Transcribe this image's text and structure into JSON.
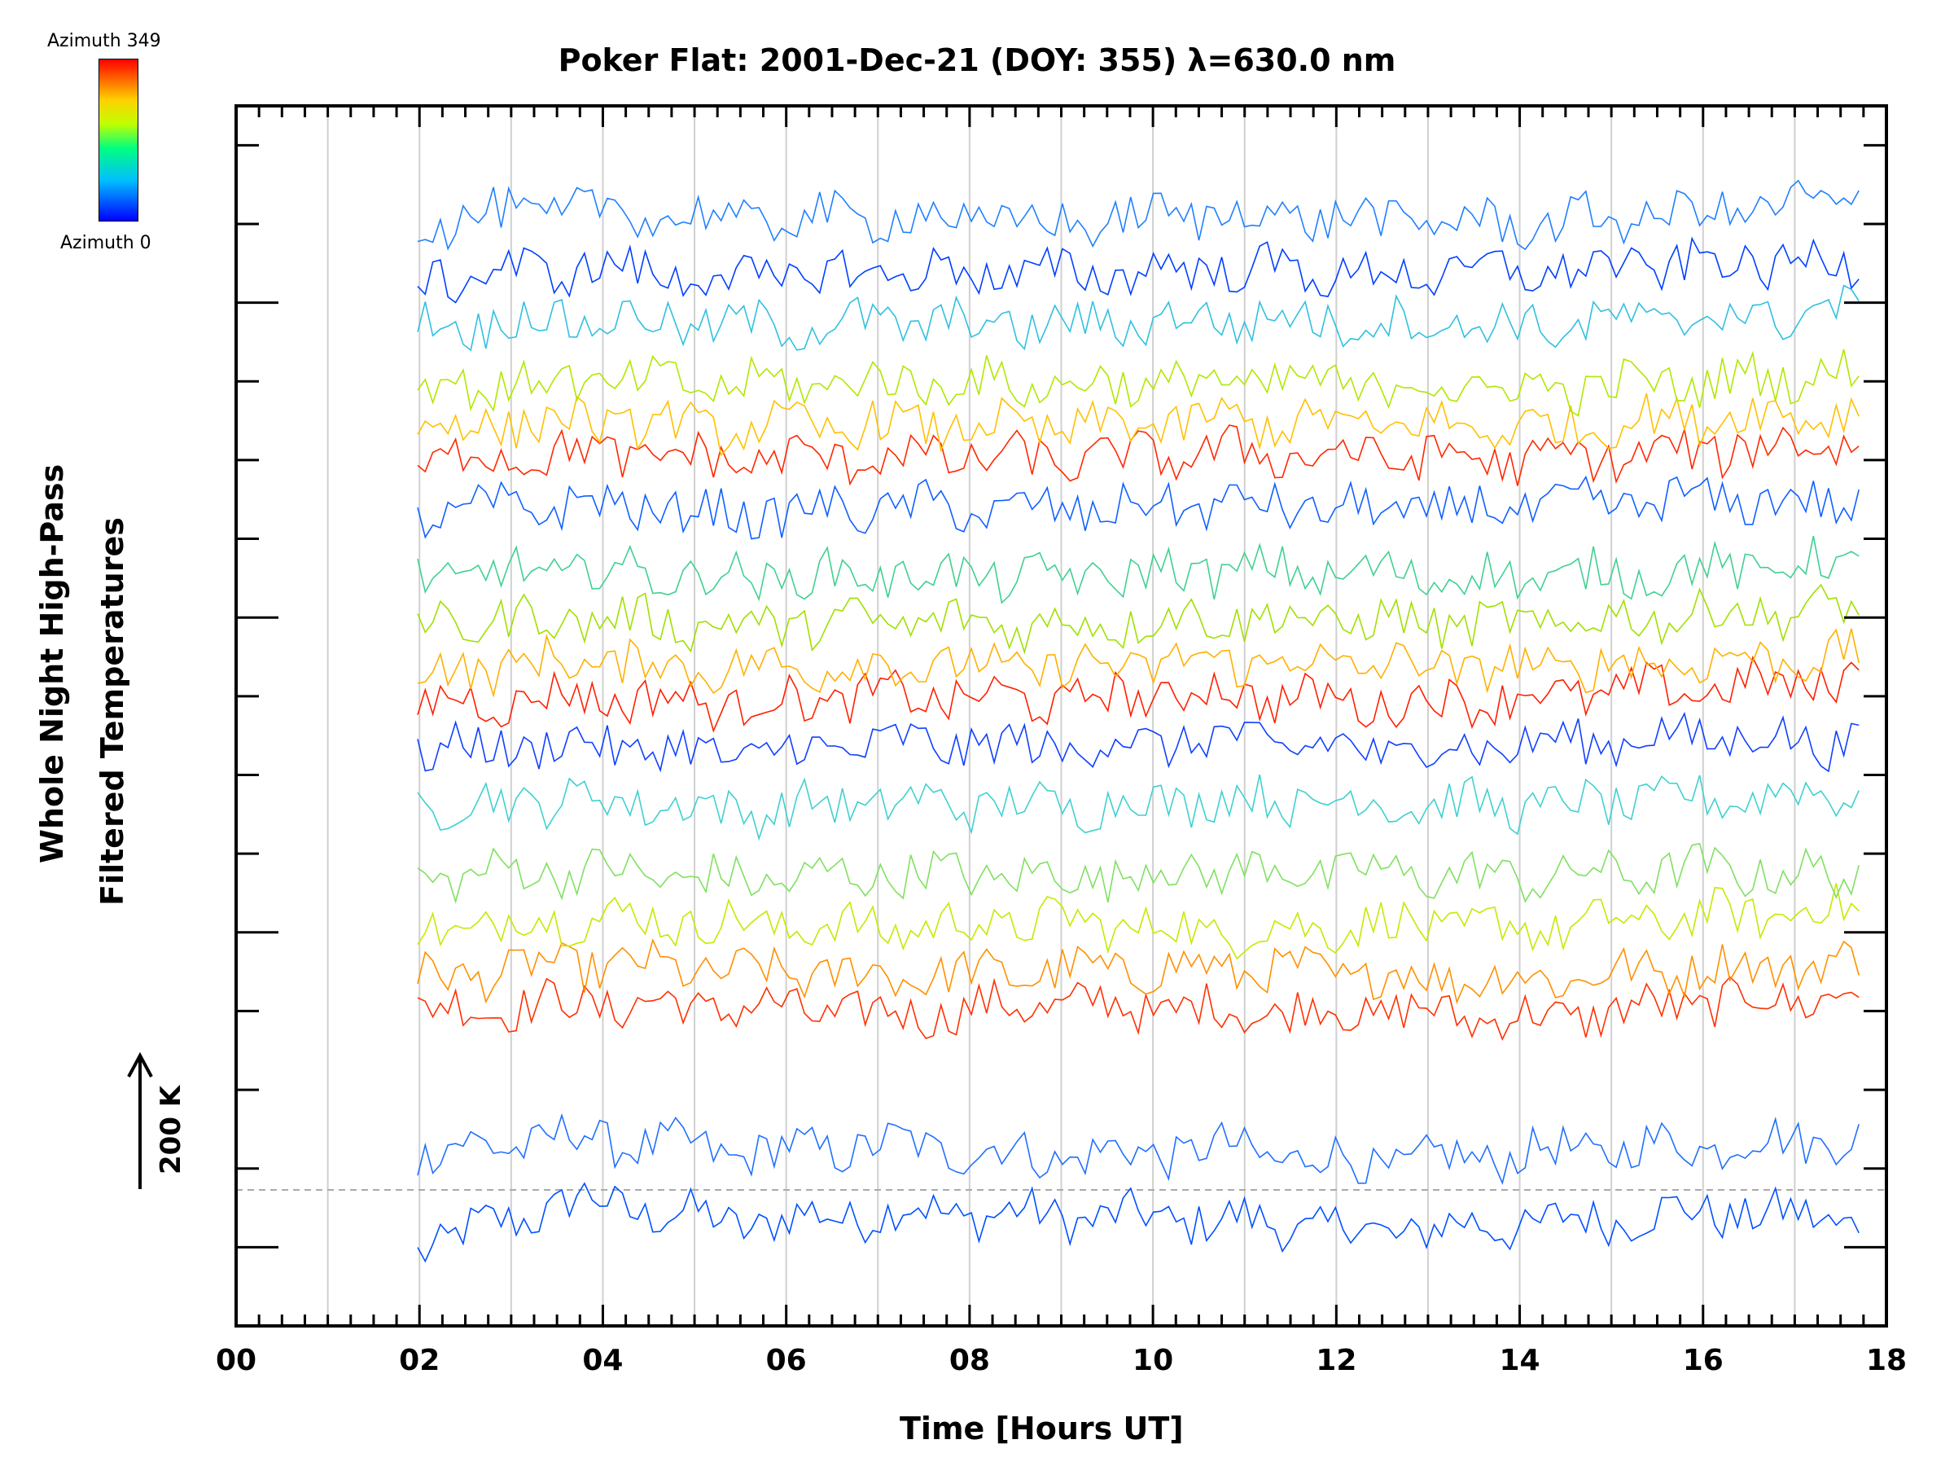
{
  "chart_data": {
    "type": "line",
    "title": "Poker Flat: 2001-Dec-21 (DOY: 355) λ=630.0 nm",
    "xlabel": "Time [Hours UT]",
    "ylabel": [
      "Whole Night High-Pass",
      "Filtered Temperatures"
    ],
    "xlim": [
      0,
      18
    ],
    "x_tick_labels": [
      "00",
      "02",
      "04",
      "06",
      "08",
      "10",
      "12",
      "14",
      "16",
      "18"
    ],
    "data_range_hours": [
      1.98,
      17.7
    ],
    "grid": "vertical lines every hour",
    "scale_bar": "200 K",
    "colorbar": {
      "top_label": "Azimuth 349",
      "bottom_label": "Azimuth 0",
      "colors": [
        "#0000ff",
        "#00bfff",
        "#00ff80",
        "#c0ff00",
        "#ffd000",
        "#ff0000"
      ]
    },
    "series": [
      {
        "color": "#0050ff",
        "values": [
          1000,
          1060,
          1030,
          1045,
          1040,
          1035,
          1020,
          1030,
          1045,
          1035
        ]
      },
      {
        "color": "#2070ff",
        "values": [
          1120,
          1140,
          1120,
          1130,
          1115,
          1125,
          1105,
          1120,
          1130,
          1140
        ]
      },
      {
        "color": "#ff3000",
        "values": [
          1300,
          1310,
          1305,
          1295,
          1310,
          1300,
          1300,
          1290,
          1310,
          1320
        ]
      },
      {
        "color": "#ff9000",
        "values": [
          1340,
          1360,
          1350,
          1345,
          1350,
          1355,
          1345,
          1340,
          1355,
          1360
        ]
      },
      {
        "color": "#c8e800",
        "values": [
          1400,
          1420,
          1410,
          1405,
          1415,
          1400,
          1410,
          1405,
          1420,
          1430
        ]
      },
      {
        "color": "#80e060",
        "values": [
          1470,
          1480,
          1465,
          1475,
          1470,
          1480,
          1475,
          1470,
          1480,
          1470
        ]
      },
      {
        "color": "#40d0d0",
        "values": [
          1560,
          1570,
          1555,
          1565,
          1560,
          1570,
          1565,
          1560,
          1570,
          1580
        ]
      },
      {
        "color": "#1040ff",
        "values": [
          1630,
          1640,
          1625,
          1640,
          1635,
          1645,
          1630,
          1640,
          1650,
          1640
        ]
      },
      {
        "color": "#ff2000",
        "values": [
          1690,
          1700,
          1690,
          1700,
          1695,
          1705,
          1690,
          1700,
          1710,
          1720
        ]
      },
      {
        "color": "#ffb000",
        "values": [
          1730,
          1745,
          1735,
          1740,
          1735,
          1745,
          1740,
          1735,
          1745,
          1750
        ]
      },
      {
        "color": "#a0e000",
        "values": [
          1790,
          1800,
          1790,
          1795,
          1790,
          1800,
          1795,
          1790,
          1805,
          1810
        ]
      },
      {
        "color": "#40d090",
        "values": [
          1850,
          1860,
          1850,
          1855,
          1850,
          1860,
          1855,
          1850,
          1860,
          1870
        ]
      },
      {
        "color": "#1060ff",
        "values": [
          1930,
          1945,
          1930,
          1940,
          1935,
          1945,
          1935,
          1940,
          1950,
          1945
        ]
      },
      {
        "color": "#ff2800",
        "values": [
          2000,
          2010,
          2000,
          2005,
          2000,
          2010,
          2005,
          2000,
          2010,
          2025
        ]
      },
      {
        "color": "#ffc000",
        "values": [
          2040,
          2050,
          2040,
          2045,
          2040,
          2050,
          2045,
          2040,
          2055,
          2060
        ]
      },
      {
        "color": "#b0e800",
        "values": [
          2090,
          2100,
          2095,
          2100,
          2095,
          2100,
          2095,
          2090,
          2100,
          2110
        ]
      },
      {
        "color": "#30c0e0",
        "values": [
          2170,
          2180,
          2170,
          2175,
          2170,
          2180,
          2175,
          2170,
          2180,
          2190
        ]
      },
      {
        "color": "#0040ff",
        "values": [
          2230,
          2245,
          2230,
          2240,
          2235,
          2245,
          2235,
          2240,
          2250,
          2250
        ]
      },
      {
        "color": "#2080ff",
        "values": [
          2300,
          2320,
          2305,
          2310,
          2300,
          2315,
          2305,
          2300,
          2315,
          2330
        ]
      }
    ]
  }
}
